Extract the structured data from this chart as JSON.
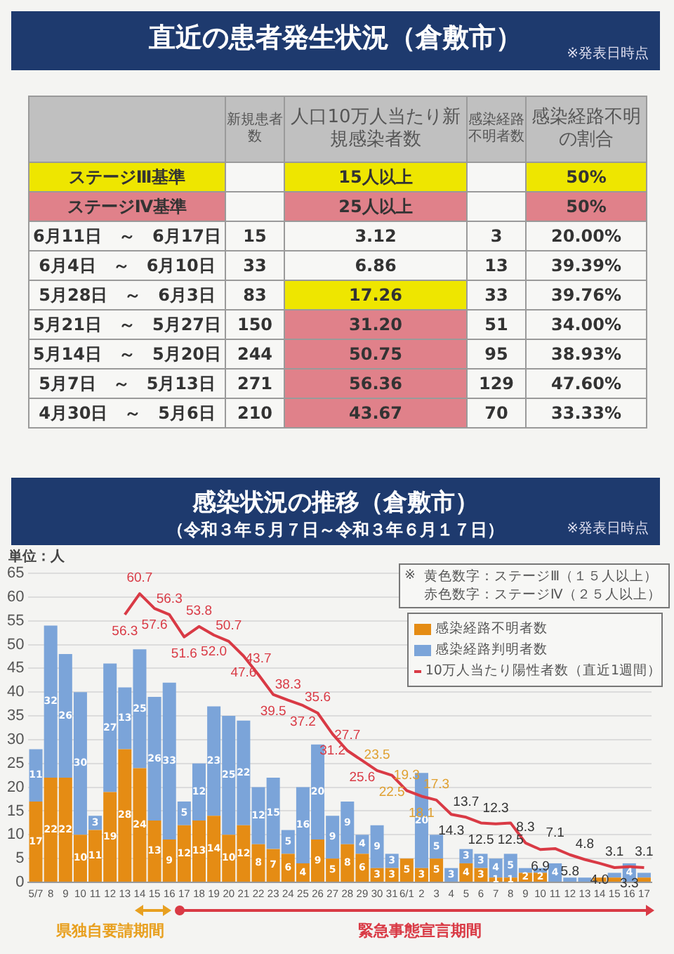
{
  "chart_data": [
    {
      "type": "other",
      "title": "直近の患者発生状況（倉敷市）",
      "annotations": [
        "※発表日時点"
      ],
      "categories": [
        null,
        "新規患者数",
        "人口10万人当たり新規感染者数",
        "感染経路不明者数",
        "感染経路不明の割合"
      ],
      "y_categories": [
        "ステージⅢ基準",
        "ステージⅣ基準",
        "6月11日　～　6月17日",
        "6月4日　～　6月10日",
        "5月28日　～　6月3日",
        "5月21日　～　5月27日",
        "5月14日　～　5月20日",
        "5月7日　～　5月13日",
        "4月30日　～　5月6日"
      ],
      "cell_labels": [
        [
          null,
          "15人以上",
          null,
          "50%"
        ],
        [
          null,
          "25人以上",
          null,
          "50%"
        ],
        [
          "15",
          "3.12",
          "3",
          "20.00%"
        ],
        [
          "33",
          "6.86",
          "13",
          "39.39%"
        ],
        [
          "83",
          "17.26",
          "33",
          "39.76%"
        ],
        [
          "150",
          "31.20",
          "51",
          "34.00%"
        ],
        [
          "244",
          "50.75",
          "95",
          "38.93%"
        ],
        [
          "271",
          "56.36",
          "129",
          "47.60%"
        ],
        [
          "210",
          "43.67",
          "70",
          "33.33%"
        ]
      ],
      "colors": [
        [
          "#eee600",
          null,
          "#eee600",
          null,
          "#eee600"
        ],
        [
          "#e0818a",
          null,
          "#e0818a",
          null,
          "#e0818a"
        ],
        [
          null,
          null,
          null,
          null,
          null
        ],
        [
          null,
          null,
          null,
          null,
          null
        ],
        [
          null,
          null,
          "#eee600",
          null,
          null
        ],
        [
          null,
          null,
          "#e0818a",
          null,
          null
        ],
        [
          null,
          null,
          "#e0818a",
          null,
          null
        ],
        [
          null,
          null,
          "#e0818a",
          null,
          null
        ],
        [
          null,
          null,
          "#e0818a",
          null,
          null
        ]
      ]
    },
    {
      "type": "bar",
      "title": "感染状況の推移（倉敷市）",
      "subtitle": "（令和３年５月７日～令和３年６月１７日）",
      "ylabel": "単位：人",
      "annotations": [
        "※発表日時点",
        "※",
        "黄色数字：ステージⅢ（１５人以上）",
        "赤色数字：ステージⅣ（２５人以上）",
        "県独自要請期間",
        "緊急事態宣言期間"
      ],
      "categories": [
        "5/7",
        "8",
        "9",
        "10",
        "11",
        "12",
        "13",
        "14",
        "15",
        "16",
        "17",
        "18",
        "19",
        "20",
        "21",
        "22",
        "23",
        "24",
        "25",
        "26",
        "27",
        "28",
        "29",
        "30",
        "31",
        "6/1",
        "2",
        "3",
        "4",
        "5",
        "6",
        "7",
        "8",
        "9",
        "10",
        "11",
        "12",
        "13",
        "14",
        "15",
        "16",
        "17"
      ],
      "stacked": true,
      "ylim": [
        0,
        65
      ],
      "yticks": [
        0,
        5,
        10,
        15,
        20,
        25,
        30,
        35,
        40,
        45,
        50,
        55,
        60,
        65
      ],
      "grid": "y",
      "legend": "top right",
      "marker": "none",
      "series": [
        {
          "name": "感染経路不明者数",
          "type": "bar",
          "color": "#e58c14",
          "values": [
            17,
            22,
            22,
            10,
            11,
            19,
            28,
            24,
            13,
            9,
            12,
            13,
            14,
            10,
            12,
            8,
            7,
            6,
            4,
            9,
            5,
            8,
            6,
            3,
            3,
            5,
            3,
            5,
            0,
            4,
            3,
            1,
            1,
            2,
            2,
            0,
            0,
            0,
            1,
            1,
            0,
            1
          ],
          "value_labels": [
            "17",
            "22",
            "22",
            "10",
            "11",
            "19",
            "28",
            "24",
            "13",
            "9",
            "12",
            "13",
            "14",
            "10",
            "12",
            "8",
            "7",
            "6",
            "4",
            "9",
            "5",
            "8",
            "6",
            "3",
            "3",
            "5",
            "3",
            "5",
            null,
            "4",
            "3",
            "1",
            "1",
            "2",
            "2",
            null,
            null,
            null,
            null,
            null,
            null,
            null
          ]
        },
        {
          "name": "感染経路判明者数",
          "type": "bar",
          "color": "#7ba4d9",
          "values": [
            11,
            32,
            26,
            30,
            3,
            27,
            13,
            25,
            26,
            33,
            5,
            12,
            23,
            25,
            22,
            12,
            15,
            5,
            16,
            20,
            9,
            9,
            4,
            9,
            3,
            0,
            20,
            5,
            3,
            3,
            3,
            4,
            5,
            1,
            1,
            4,
            1,
            1,
            0,
            1,
            4,
            1
          ],
          "value_labels": [
            "11",
            "32",
            "26",
            "30",
            "3",
            "27",
            "13",
            "25",
            "26",
            "33",
            "5",
            "12",
            "23",
            "25",
            "22",
            "12",
            "15",
            "5",
            "16",
            "20",
            "9",
            "9",
            "4",
            "9",
            "3",
            null,
            "20",
            "5",
            "3",
            "3",
            "3",
            "4",
            "5",
            null,
            null,
            "4",
            null,
            null,
            null,
            null,
            "4",
            null
          ]
        },
        {
          "name": "10万人当たり陽性者数（直近1週間）",
          "type": "line",
          "color": "#d93a45",
          "values": [
            null,
            null,
            null,
            null,
            null,
            null,
            56.3,
            60.7,
            57.6,
            56.3,
            51.6,
            53.8,
            52.0,
            50.7,
            47.6,
            43.7,
            39.5,
            38.3,
            37.2,
            35.6,
            31.2,
            27.7,
            25.6,
            23.5,
            22.5,
            19.3,
            18.1,
            17.3,
            14.3,
            13.7,
            12.5,
            12.3,
            12.5,
            8.3,
            6.9,
            7.1,
            5.8,
            4.8,
            4.0,
            3.1,
            3.3,
            3.1
          ],
          "value_labels": [
            null,
            null,
            null,
            null,
            null,
            null,
            "56.3",
            "60.7",
            "57.6",
            "56.3",
            "51.6",
            "53.8",
            "52.0",
            "50.7",
            "47.6",
            "43.7",
            "39.5",
            "38.3",
            "37.2",
            "35.6",
            "31.2",
            "27.7",
            "25.6",
            "23.5",
            "22.5",
            "19.3",
            "18.1",
            "17.3",
            "14.3",
            "13.7",
            "12.5",
            "12.3",
            "12.5",
            "8.3",
            "6.9",
            "7.1",
            "5.8",
            "4.8",
            "4.0",
            "3.1",
            "3.3",
            "3.1"
          ],
          "colors": [
            null,
            null,
            null,
            null,
            null,
            null,
            "#d93a45",
            "#d93a45",
            "#d93a45",
            "#d93a45",
            "#d93a45",
            "#d93a45",
            "#d93a45",
            "#d93a45",
            "#d93a45",
            "#d93a45",
            "#d93a45",
            "#d93a45",
            "#d93a45",
            "#d93a45",
            "#d93a45",
            "#d93a45",
            "#d93a45",
            "#e0a030",
            "#e0a030",
            "#e0a030",
            "#e0a030",
            "#e0a030",
            "#333333",
            "#333333",
            "#333333",
            "#333333",
            "#333333",
            "#333333",
            "#333333",
            "#333333",
            "#333333",
            "#333333",
            "#333333",
            "#333333",
            "#333333",
            "#333333"
          ]
        }
      ]
    }
  ]
}
